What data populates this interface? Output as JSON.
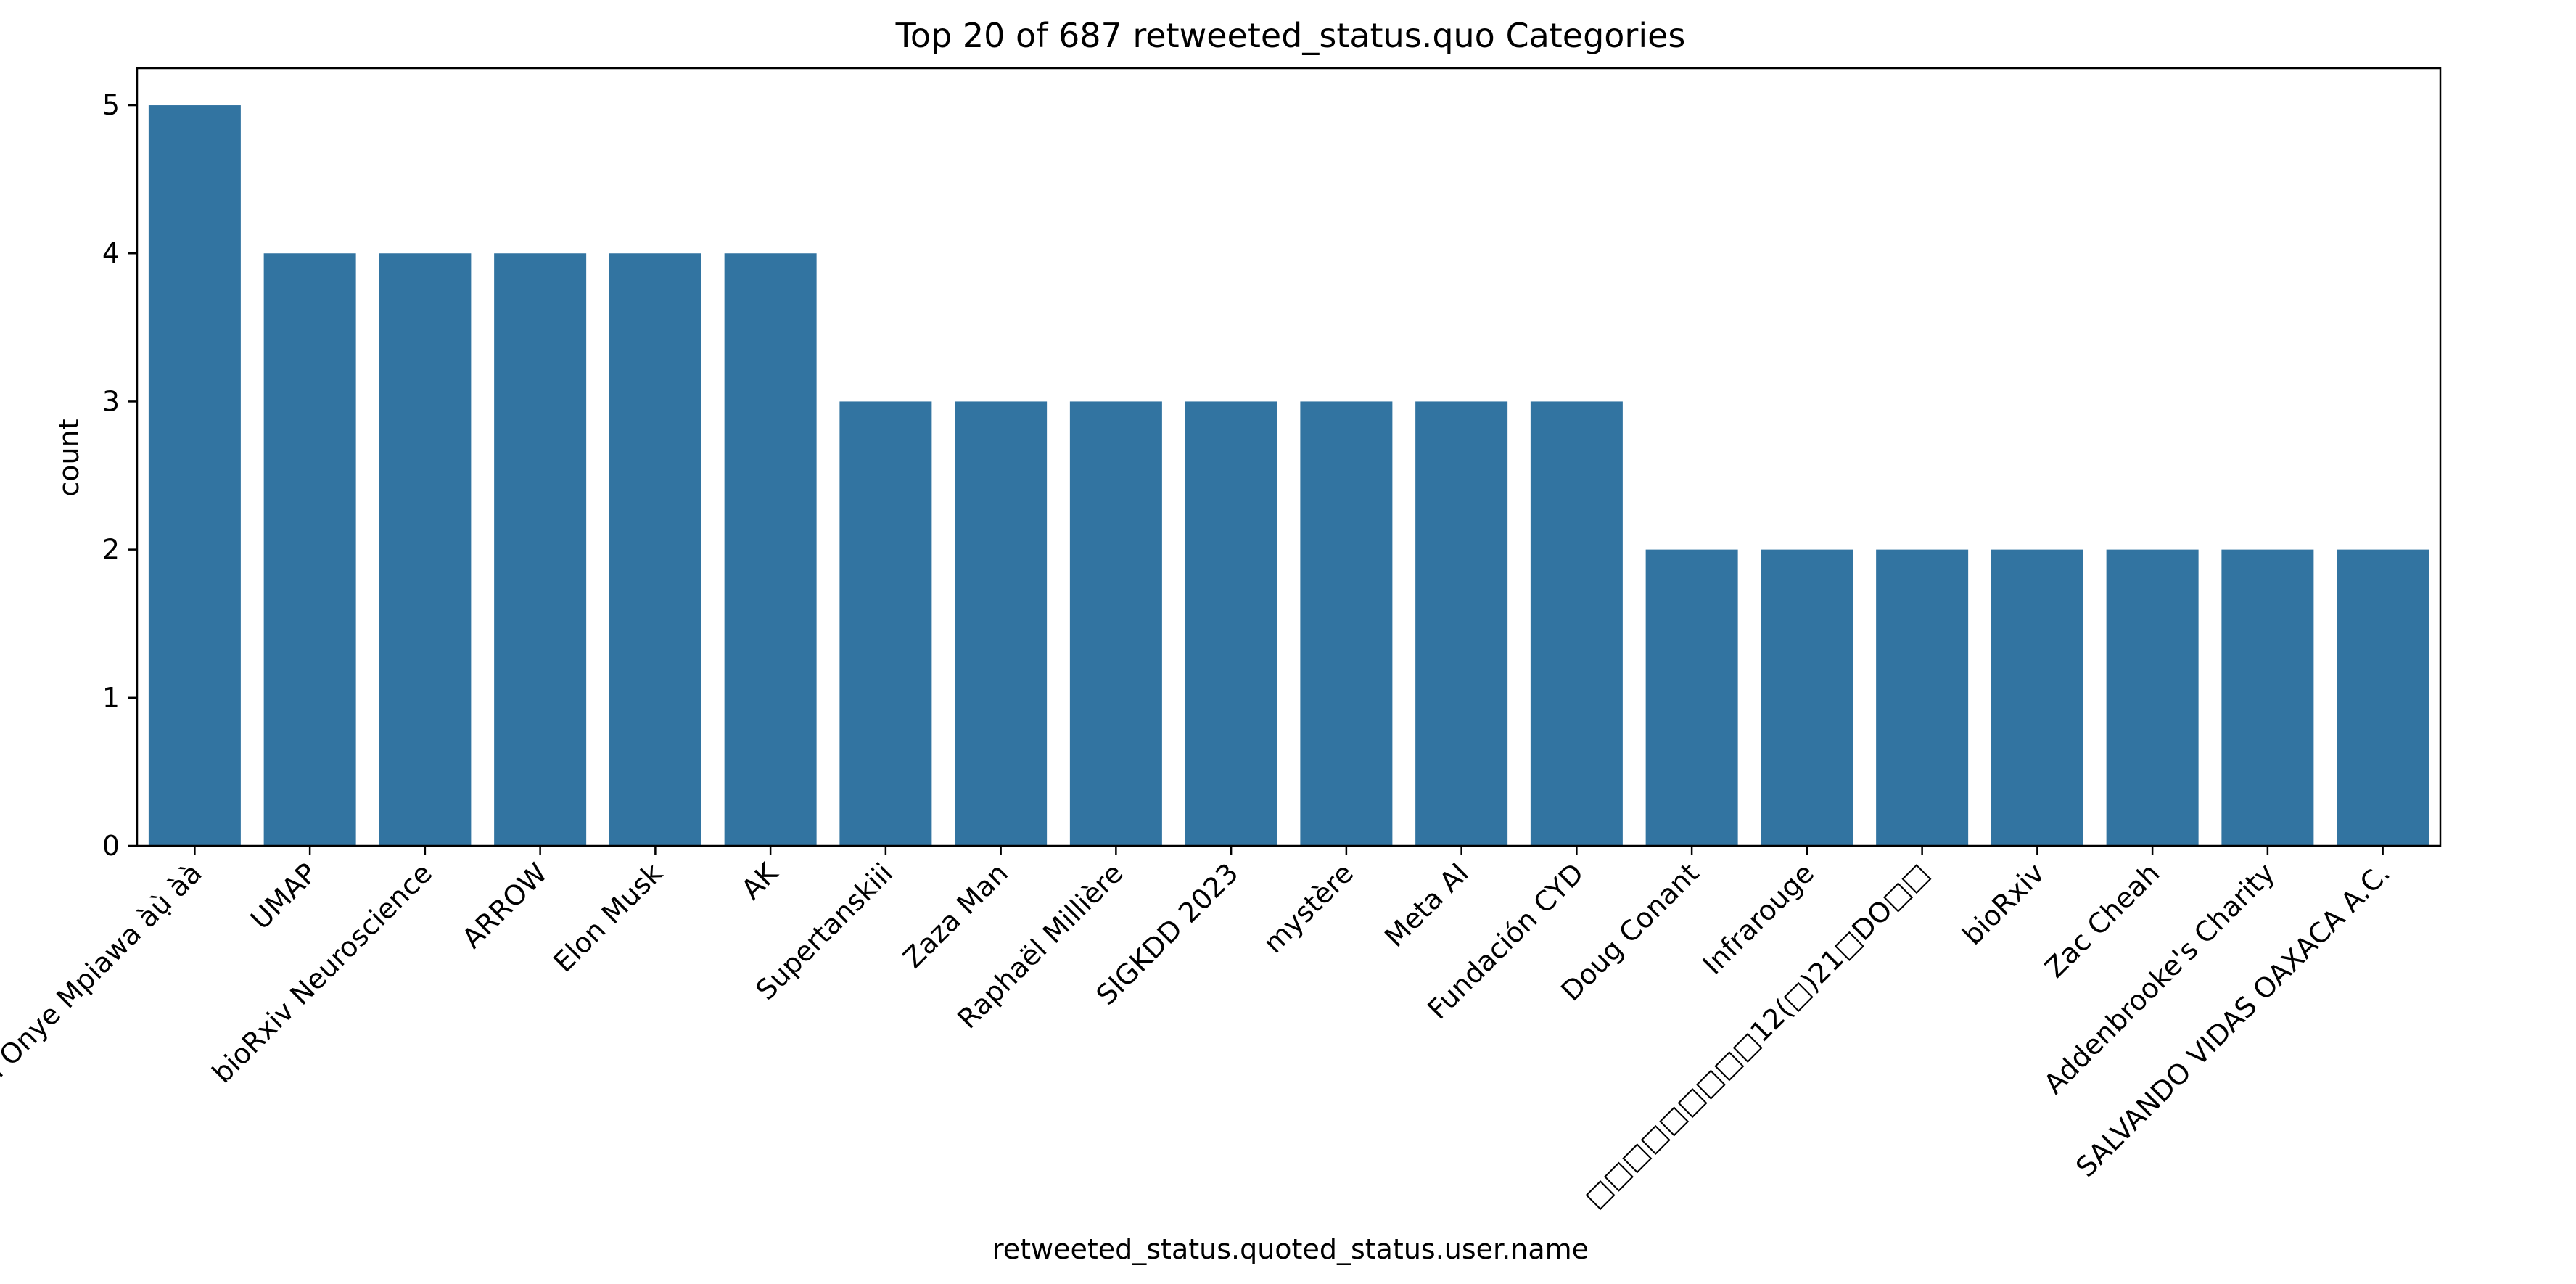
{
  "chart_data": {
    "type": "bar",
    "title": "Top 20 of 687 retweeted_status.quo Categories",
    "xlabel": "retweeted_status.quoted_status.user.name",
    "ylabel": "count",
    "categories": [
      "Aji Bussu Onye Mpiawa àụ̀ àà",
      "UMAP",
      "bioRxiv Neuroscience",
      "ARROW",
      "Elon Musk",
      "AK",
      "Supertanskiii",
      "Zaza Man",
      "Raphaël Millière",
      "SIGKDD 2023",
      "mystère",
      "Meta AI",
      "Fundación CYD",
      "Doug Conant",
      "Infrarouge",
      "□□□□□□□□□12(□)21□DO□□",
      "bioRxiv",
      "Zac Cheah",
      "Addenbrooke's Charity",
      "SALVANDO VIDAS OAXACA A.C."
    ],
    "values": [
      5,
      4,
      4,
      4,
      4,
      4,
      3,
      3,
      3,
      3,
      3,
      3,
      3,
      2,
      2,
      2,
      2,
      2,
      2,
      2
    ],
    "yticks": [
      "0",
      "1",
      "2",
      "3",
      "4",
      "5"
    ],
    "ylim": [
      0,
      5.25
    ],
    "grid": false,
    "legend": "none",
    "bar_color": "#3274a1"
  }
}
